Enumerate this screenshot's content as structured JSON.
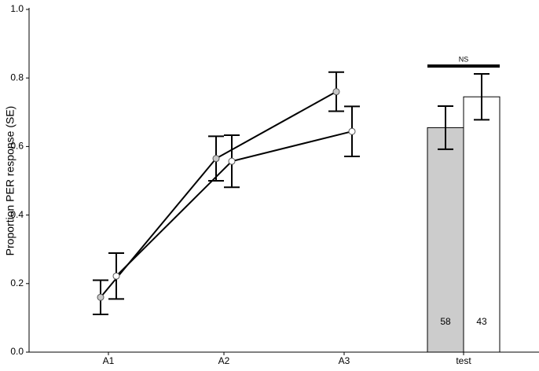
{
  "chart_data": {
    "type": "line",
    "ylabel": "Proportion PER response (SE)",
    "categories": [
      "A1",
      "A2",
      "A3",
      "test"
    ],
    "ylim": [
      0,
      1.0
    ],
    "yticks": [
      {
        "value": 0,
        "label": "0.0"
      },
      {
        "value": 0.2,
        "label": "0.2"
      },
      {
        "value": 0.4,
        "label": "0.4"
      },
      {
        "value": 0.6,
        "label": "0.6"
      },
      {
        "value": 0.8,
        "label": "0.8"
      },
      {
        "value": 1.0,
        "label": "1.0"
      }
    ],
    "series": [
      {
        "type": "line",
        "color": "#c8c8c8",
        "values": [
          0.16,
          0.565,
          0.76,
          null
        ],
        "errors": [
          0.05,
          0.065,
          0.057,
          null
        ]
      },
      {
        "type": "line",
        "color": "#ffffff",
        "values": [
          0.222,
          0.557,
          0.644,
          null
        ],
        "errors": [
          0.067,
          0.076,
          0.073,
          null
        ]
      },
      {
        "type": "bar",
        "color": "#cccccc",
        "values": [
          null,
          null,
          null,
          0.655
        ],
        "errors": [
          null,
          null,
          null,
          0.063
        ],
        "labels": [
          null,
          null,
          null,
          "58"
        ]
      },
      {
        "type": "bar",
        "color": "#ffffff",
        "values": [
          null,
          null,
          null,
          0.745
        ],
        "errors": [
          null,
          null,
          null,
          0.067
        ],
        "labels": [
          null,
          null,
          null,
          "43"
        ]
      }
    ],
    "annotations": [
      {
        "text": "NS",
        "value": 0.835
      }
    ]
  }
}
